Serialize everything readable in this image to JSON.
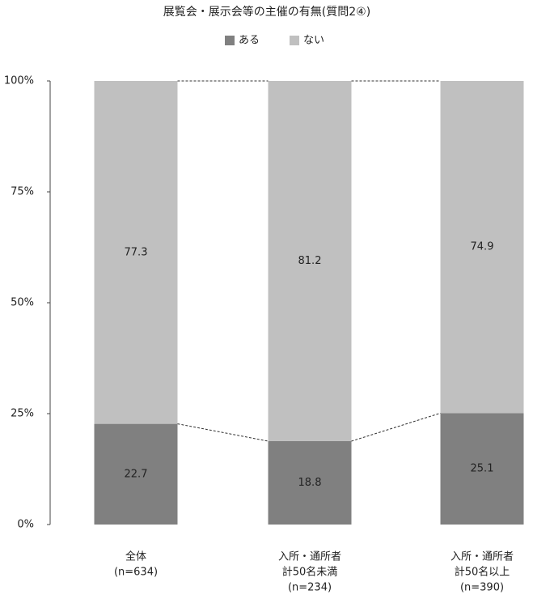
{
  "chart_data": {
    "type": "stacked_bar_100",
    "title": "展覧会・展示会等の主催の有無(質問2④)",
    "categories": [
      [
        "全体",
        "(n=634)"
      ],
      [
        "入所・通所者",
        "計50名未満",
        "(n=234)"
      ],
      [
        "入所・通所者",
        "計50名以上",
        "(n=390)"
      ]
    ],
    "series": [
      {
        "name": "ある",
        "color": "#808080",
        "values": [
          22.7,
          18.8,
          25.1
        ]
      },
      {
        "name": "ない",
        "color": "#c0c0c0",
        "values": [
          77.3,
          81.2,
          74.9
        ]
      }
    ],
    "ylim": [
      0,
      100
    ],
    "yticks": [
      {
        "value": 0,
        "label": "0%"
      },
      {
        "value": 25,
        "label": "25%"
      },
      {
        "value": 50,
        "label": "50%"
      },
      {
        "value": 75,
        "label": "75%"
      },
      {
        "value": 100,
        "label": "100%"
      }
    ],
    "legend": "top",
    "series_lines": true
  }
}
